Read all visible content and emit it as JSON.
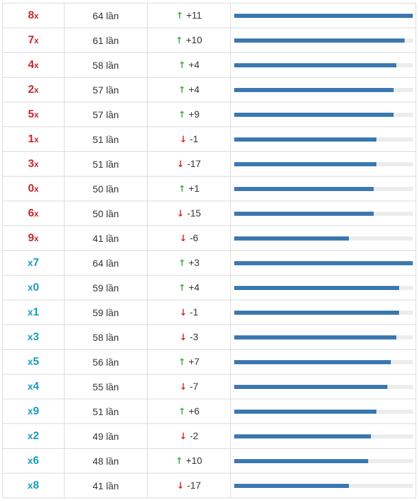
{
  "colors": {
    "head_digit": "#c8262d",
    "tail_digit": "#1a9bbf",
    "up_arrow": "#3fae3f",
    "down_arrow": "#d9262b",
    "bar_fill": "#3a78b0",
    "bar_track": "#ececec"
  },
  "max_count": 64,
  "rows": [
    {
      "digit": "8",
      "mark": "x",
      "position": "head",
      "count": 64,
      "count_text": "64 lần",
      "direction": "up",
      "delta": "+11"
    },
    {
      "digit": "7",
      "mark": "x",
      "position": "head",
      "count": 61,
      "count_text": "61 lần",
      "direction": "up",
      "delta": "+10"
    },
    {
      "digit": "4",
      "mark": "x",
      "position": "head",
      "count": 58,
      "count_text": "58 lần",
      "direction": "up",
      "delta": "+4"
    },
    {
      "digit": "2",
      "mark": "x",
      "position": "head",
      "count": 57,
      "count_text": "57 lần",
      "direction": "up",
      "delta": "+4"
    },
    {
      "digit": "5",
      "mark": "x",
      "position": "head",
      "count": 57,
      "count_text": "57 lần",
      "direction": "up",
      "delta": "+9"
    },
    {
      "digit": "1",
      "mark": "x",
      "position": "head",
      "count": 51,
      "count_text": "51 lần",
      "direction": "down",
      "delta": "-1"
    },
    {
      "digit": "3",
      "mark": "x",
      "position": "head",
      "count": 51,
      "count_text": "51 lần",
      "direction": "down",
      "delta": "-17"
    },
    {
      "digit": "0",
      "mark": "x",
      "position": "head",
      "count": 50,
      "count_text": "50 lần",
      "direction": "up",
      "delta": "+1"
    },
    {
      "digit": "6",
      "mark": "x",
      "position": "head",
      "count": 50,
      "count_text": "50 lần",
      "direction": "down",
      "delta": "-15"
    },
    {
      "digit": "9",
      "mark": "x",
      "position": "head",
      "count": 41,
      "count_text": "41 lần",
      "direction": "down",
      "delta": "-6"
    },
    {
      "digit": "7",
      "mark": "x",
      "position": "tail",
      "count": 64,
      "count_text": "64 lần",
      "direction": "up",
      "delta": "+3"
    },
    {
      "digit": "0",
      "mark": "x",
      "position": "tail",
      "count": 59,
      "count_text": "59 lần",
      "direction": "up",
      "delta": "+4"
    },
    {
      "digit": "1",
      "mark": "x",
      "position": "tail",
      "count": 59,
      "count_text": "59 lần",
      "direction": "down",
      "delta": "-1"
    },
    {
      "digit": "3",
      "mark": "x",
      "position": "tail",
      "count": 58,
      "count_text": "58 lần",
      "direction": "down",
      "delta": "-3"
    },
    {
      "digit": "5",
      "mark": "x",
      "position": "tail",
      "count": 56,
      "count_text": "56 lần",
      "direction": "up",
      "delta": "+7"
    },
    {
      "digit": "4",
      "mark": "x",
      "position": "tail",
      "count": 55,
      "count_text": "55 lần",
      "direction": "down",
      "delta": "-7"
    },
    {
      "digit": "9",
      "mark": "x",
      "position": "tail",
      "count": 51,
      "count_text": "51 lần",
      "direction": "up",
      "delta": "+6"
    },
    {
      "digit": "2",
      "mark": "x",
      "position": "tail",
      "count": 49,
      "count_text": "49 lần",
      "direction": "down",
      "delta": "-2"
    },
    {
      "digit": "6",
      "mark": "x",
      "position": "tail",
      "count": 48,
      "count_text": "48 lần",
      "direction": "up",
      "delta": "+10"
    },
    {
      "digit": "8",
      "mark": "x",
      "position": "tail",
      "count": 41,
      "count_text": "41 lần",
      "direction": "down",
      "delta": "-17"
    }
  ]
}
